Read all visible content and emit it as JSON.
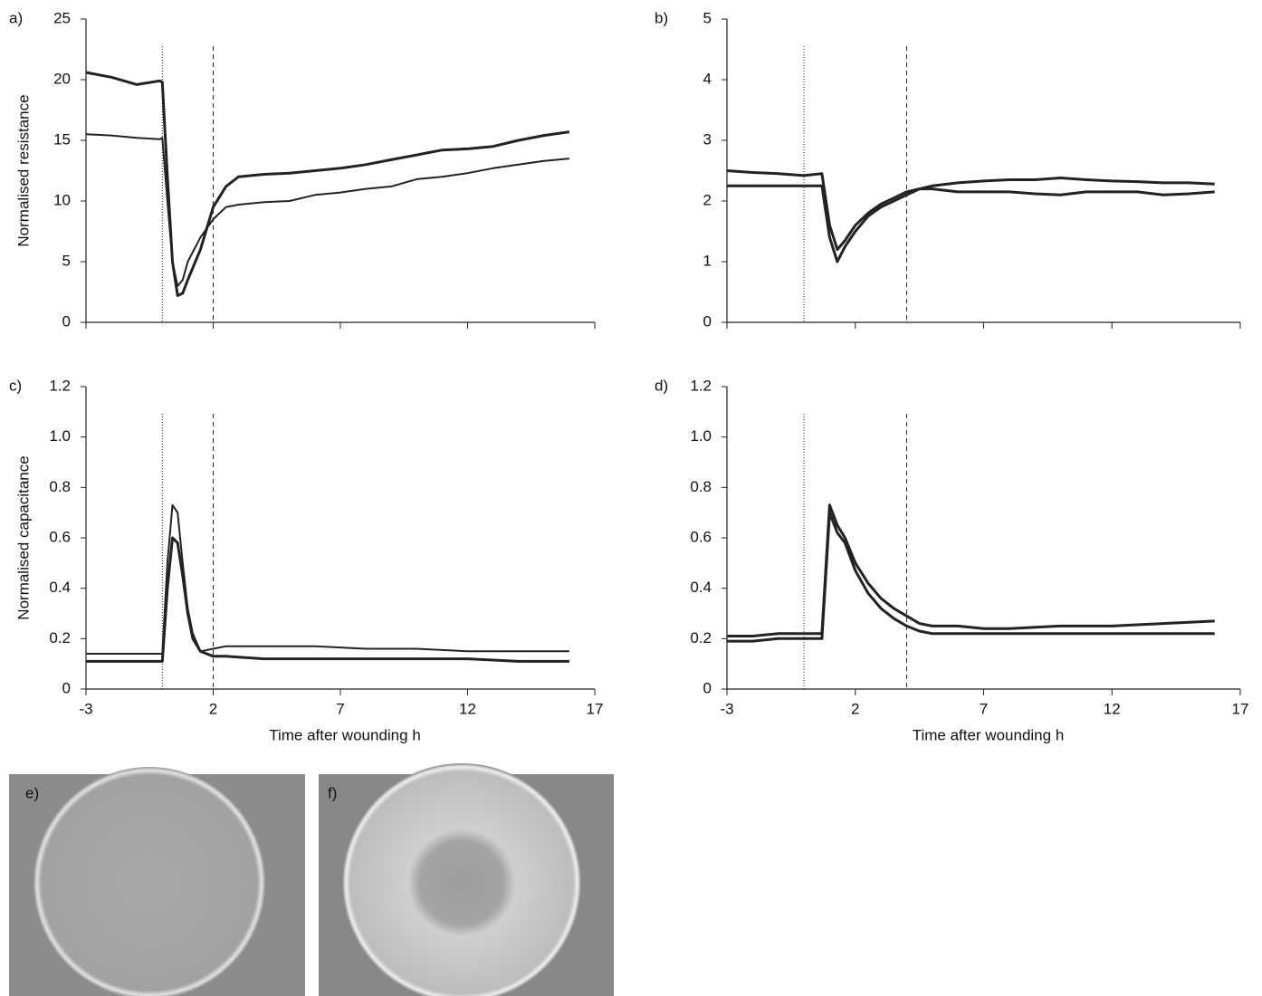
{
  "chart_data": [
    {
      "type": "line",
      "label": "a)",
      "ylabel": "Normalised resistance",
      "x": [
        -3,
        -2,
        -1,
        -0.1,
        0,
        0.2,
        0.4,
        0.6,
        0.8,
        1,
        1.5,
        2,
        2.5,
        3,
        4,
        5,
        6,
        7,
        8,
        9,
        10,
        11,
        12,
        13,
        14,
        15,
        16
      ],
      "series": [
        {
          "color": "#222222",
          "width": 3,
          "values": [
            20.6,
            20.2,
            19.6,
            19.9,
            19.8,
            12,
            5,
            2.2,
            2.4,
            3.5,
            6,
            9.5,
            11.2,
            12,
            12.2,
            12.3,
            12.5,
            12.7,
            13,
            13.4,
            13.8,
            14.2,
            14.3,
            14.5,
            15,
            15.4,
            15.7
          ]
        },
        {
          "color": "#222222",
          "width": 2,
          "values": [
            15.5,
            15.4,
            15.2,
            15.1,
            15.2,
            10,
            5,
            3,
            3.5,
            5,
            7,
            8.5,
            9.5,
            9.7,
            9.9,
            10,
            10.5,
            10.7,
            11,
            11.2,
            11.8,
            12,
            12.3,
            12.7,
            13,
            13.3,
            13.5
          ]
        }
      ],
      "xlim": [
        -3,
        17
      ],
      "xticks": [
        -3,
        2,
        7,
        12,
        17
      ],
      "show_xtick_labels": false,
      "ylim": [
        0,
        25
      ],
      "yticks": [
        0,
        5,
        10,
        15,
        20,
        25
      ],
      "vlines": [
        {
          "x": 0,
          "style": "dotted"
        },
        {
          "x": 2,
          "style": "dashed"
        }
      ]
    },
    {
      "type": "line",
      "label": "b)",
      "x": [
        -3,
        -2,
        -1,
        0,
        0.7,
        1,
        1.3,
        1.6,
        2,
        2.5,
        3,
        3.5,
        4,
        4.5,
        5,
        6,
        7,
        8,
        9,
        10,
        11,
        12,
        13,
        14,
        15,
        16
      ],
      "series": [
        {
          "color": "#222222",
          "width": 3,
          "values": [
            2.5,
            2.47,
            2.45,
            2.42,
            2.45,
            1.6,
            1.2,
            1.35,
            1.6,
            1.8,
            1.95,
            2.05,
            2.15,
            2.2,
            2.2,
            2.15,
            2.15,
            2.15,
            2.12,
            2.1,
            2.15,
            2.15,
            2.15,
            2.1,
            2.12,
            2.15
          ]
        },
        {
          "color": "#222222",
          "width": 3,
          "values": [
            2.25,
            2.25,
            2.25,
            2.25,
            2.25,
            1.4,
            1.0,
            1.25,
            1.5,
            1.75,
            1.9,
            2.0,
            2.1,
            2.2,
            2.25,
            2.3,
            2.33,
            2.35,
            2.35,
            2.38,
            2.35,
            2.33,
            2.32,
            2.3,
            2.3,
            2.28
          ]
        }
      ],
      "xlim": [
        -3,
        17
      ],
      "xticks": [
        -3,
        2,
        7,
        12,
        17
      ],
      "show_xtick_labels": false,
      "ylim": [
        0,
        5
      ],
      "yticks": [
        0,
        1,
        2,
        3,
        4,
        5
      ],
      "vlines": [
        {
          "x": 0,
          "style": "dotted"
        },
        {
          "x": 4,
          "style": "dashed"
        }
      ]
    },
    {
      "type": "line",
      "label": "c)",
      "ylabel": "Normalised capacitance",
      "xlabel": "Time after wounding h",
      "x": [
        -3,
        -1,
        -0.05,
        0,
        0.2,
        0.4,
        0.6,
        0.8,
        1,
        1.2,
        1.5,
        2,
        2.5,
        4,
        6,
        8,
        10,
        12,
        14,
        15,
        16
      ],
      "series": [
        {
          "color": "#222222",
          "width": 3,
          "values": [
            0.11,
            0.11,
            0.11,
            0.11,
            0.4,
            0.6,
            0.58,
            0.45,
            0.3,
            0.2,
            0.15,
            0.13,
            0.13,
            0.12,
            0.12,
            0.12,
            0.12,
            0.12,
            0.11,
            0.11,
            0.11
          ]
        },
        {
          "color": "#222222",
          "width": 2,
          "values": [
            0.14,
            0.14,
            0.14,
            0.14,
            0.5,
            0.73,
            0.7,
            0.5,
            0.32,
            0.22,
            0.15,
            0.16,
            0.17,
            0.17,
            0.17,
            0.16,
            0.16,
            0.15,
            0.15,
            0.15,
            0.15
          ]
        }
      ],
      "xlim": [
        -3,
        17
      ],
      "xticks": [
        -3,
        2,
        7,
        12,
        17
      ],
      "show_xtick_labels": true,
      "ylim": [
        0,
        1.2
      ],
      "yticks": [
        0,
        0.2,
        0.4,
        0.6,
        0.8,
        {
          "value": 1,
          "label": "1.0"
        },
        1.2
      ],
      "vlines": [
        {
          "x": 0,
          "style": "dotted"
        },
        {
          "x": 2,
          "style": "dashed"
        }
      ]
    },
    {
      "type": "line",
      "label": "d)",
      "xlabel": "Time after wounding h",
      "x": [
        -3,
        -2,
        -1,
        0,
        0.7,
        1,
        1.3,
        1.6,
        2,
        2.5,
        3,
        3.5,
        4,
        4.5,
        5,
        6,
        7,
        8,
        10,
        12,
        14,
        16
      ],
      "series": [
        {
          "color": "#222222",
          "width": 3,
          "values": [
            0.21,
            0.21,
            0.22,
            0.22,
            0.22,
            0.73,
            0.65,
            0.6,
            0.5,
            0.42,
            0.36,
            0.32,
            0.29,
            0.26,
            0.25,
            0.25,
            0.24,
            0.24,
            0.25,
            0.25,
            0.26,
            0.27
          ]
        },
        {
          "color": "#222222",
          "width": 3,
          "values": [
            0.19,
            0.19,
            0.2,
            0.2,
            0.2,
            0.7,
            0.62,
            0.58,
            0.47,
            0.38,
            0.32,
            0.28,
            0.25,
            0.23,
            0.22,
            0.22,
            0.22,
            0.22,
            0.22,
            0.22,
            0.22,
            0.22
          ]
        }
      ],
      "xlim": [
        -3,
        17
      ],
      "xticks": [
        -3,
        2,
        7,
        12,
        17
      ],
      "show_xtick_labels": true,
      "ylim": [
        0,
        1.2
      ],
      "yticks": [
        0,
        0.2,
        0.4,
        0.6,
        0.8,
        {
          "value": 1,
          "label": "1.0"
        },
        1.2
      ],
      "vlines": [
        {
          "x": 0,
          "style": "dotted"
        },
        {
          "x": 4,
          "style": "dashed"
        }
      ]
    }
  ],
  "images": [
    {
      "label": "e)"
    },
    {
      "label": "f)"
    }
  ]
}
